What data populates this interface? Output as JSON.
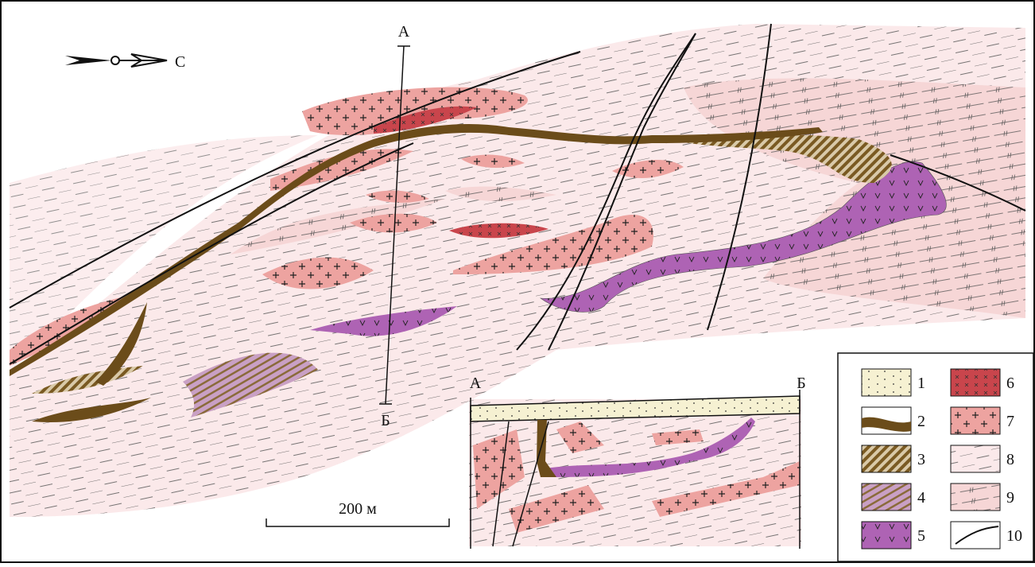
{
  "north_arrow": {
    "label": "С"
  },
  "section_line": {
    "start": "А",
    "end": "Б"
  },
  "scale_bar": {
    "label": "200 м"
  },
  "cross_section": {
    "start": "А",
    "end": "Б"
  },
  "legend": {
    "items": [
      "1",
      "2",
      "3",
      "4",
      "5",
      "6",
      "7",
      "8",
      "9",
      "10"
    ]
  }
}
